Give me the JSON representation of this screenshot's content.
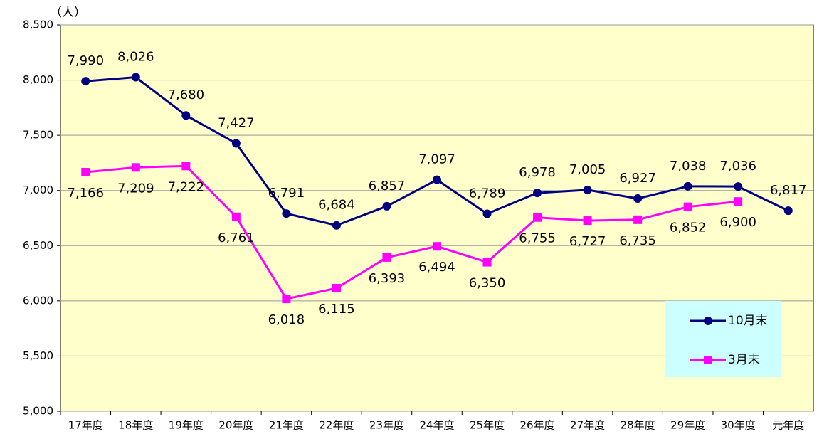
{
  "chart_data": {
    "type": "line",
    "y_unit": "（人）",
    "categories": [
      "17年度",
      "18年度",
      "19年度",
      "20年度",
      "21年度",
      "22年度",
      "23年度",
      "24年度",
      "25年度",
      "26年度",
      "27年度",
      "28年度",
      "29年度",
      "30年度",
      "元年度"
    ],
    "series": [
      {
        "name": "10月末",
        "color": "#000080",
        "marker": "circle",
        "values": [
          7990,
          8026,
          7680,
          7427,
          6791,
          6684,
          6857,
          7097,
          6789,
          6978,
          7005,
          6927,
          7038,
          7036,
          6817
        ],
        "value_labels": [
          "7,990",
          "8,026",
          "7,680",
          "7,427",
          "6,791",
          "6,684",
          "6,857",
          "7,097",
          "6,789",
          "6,978",
          "7,005",
          "6,927",
          "7,038",
          "7,036",
          "6,817"
        ]
      },
      {
        "name": "3月末",
        "color": "#ff00ff",
        "marker": "square",
        "values": [
          7166,
          7209,
          7222,
          6761,
          6018,
          6115,
          6393,
          6494,
          6350,
          6755,
          6727,
          6735,
          6852,
          6900,
          null
        ],
        "value_labels": [
          "7,166",
          "7,209",
          "7,222",
          "6,761",
          "6,018",
          "6,115",
          "6,393",
          "6,494",
          "6,350",
          "6,755",
          "6,727",
          "6,735",
          "6,852",
          "6,900",
          null
        ]
      }
    ],
    "ylim": [
      5000,
      8500
    ],
    "yticks": [
      {
        "value": 5000,
        "label": "5,000"
      },
      {
        "value": 5500,
        "label": "5,500"
      },
      {
        "value": 6000,
        "label": "6,000"
      },
      {
        "value": 6500,
        "label": "6,500"
      },
      {
        "value": 7000,
        "label": "7,000"
      },
      {
        "value": 7500,
        "label": "7,500"
      },
      {
        "value": 8000,
        "label": "8,000"
      },
      {
        "value": 8500,
        "label": "8,500"
      }
    ],
    "grid": true,
    "legend": "lower right"
  }
}
